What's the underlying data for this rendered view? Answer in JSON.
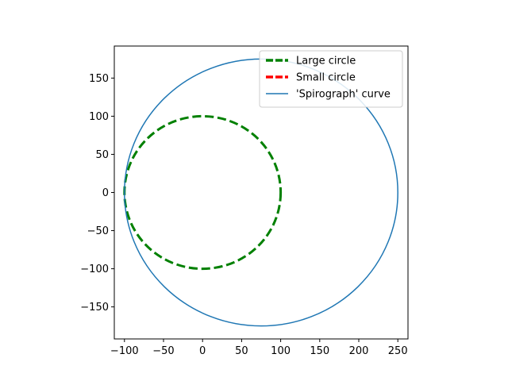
{
  "chart_data": {
    "type": "line",
    "title": "",
    "xlabel": "",
    "ylabel": "",
    "xlim": [
      -113,
      263
    ],
    "ylim": [
      -192,
      192
    ],
    "equal_aspect": true,
    "grid": false,
    "legend_position": "upper-right",
    "x_ticks": [
      -100,
      -50,
      0,
      50,
      100,
      150,
      200,
      250
    ],
    "y_ticks": [
      -150,
      -100,
      -50,
      0,
      50,
      100,
      150
    ],
    "x_tick_labels": [
      "−100",
      "−50",
      "0",
      "50",
      "100",
      "150",
      "200",
      "250"
    ],
    "y_tick_labels": [
      "−150",
      "−100",
      "−50",
      "0",
      "50",
      "100",
      "150"
    ],
    "series": [
      {
        "name": "Large circle",
        "shape": "circle",
        "center": [
          0,
          0
        ],
        "radius": 100,
        "color": "#008000",
        "line_style": "dashed"
      },
      {
        "name": "Small circle",
        "shape": "circle",
        "center": [
          0,
          0
        ],
        "radius": 0,
        "color": "#ff0000",
        "line_style": "dashed"
      },
      {
        "name": "'Spirograph' curve",
        "shape": "ellipse",
        "center": [
          75,
          0
        ],
        "radius_x": 175,
        "radius_y": 175,
        "color": "#1f77b4",
        "line_style": "solid"
      }
    ]
  }
}
